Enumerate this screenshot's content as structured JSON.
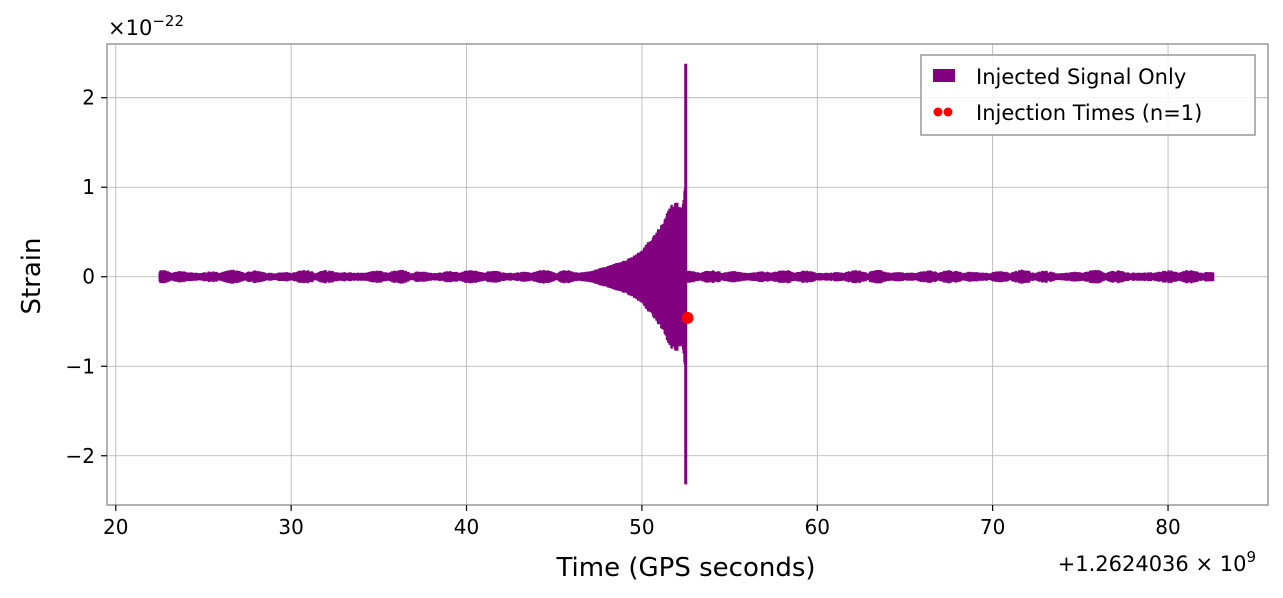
{
  "chart_data": {
    "type": "line",
    "title": "",
    "xlabel": "Time (GPS seconds)",
    "ylabel": "Strain",
    "y_scale_label": "×10^−22",
    "y_scale_base": "×10",
    "y_scale_exp": "−22",
    "x_offset_label": "+1.2624036×10^9",
    "x_offset_mant": "+1.2624036 × 10",
    "x_offset_exp": "9",
    "xlim": [
      19.5,
      85.7
    ],
    "ylim": [
      -2.55,
      2.6
    ],
    "x_ticks": [
      20,
      30,
      40,
      50,
      60,
      70,
      80
    ],
    "x_tick_labels": [
      "20",
      "30",
      "40",
      "50",
      "60",
      "70",
      "80"
    ],
    "y_ticks": [
      -2,
      -1,
      0,
      1,
      2
    ],
    "y_tick_labels": [
      "−2",
      "−1",
      "0",
      "1",
      "2"
    ],
    "grid": true,
    "legend_position": "top-right",
    "series": [
      {
        "name": "Injected Signal Only",
        "kind": "strain",
        "color": "#800080",
        "x_start": 22.5,
        "x_end": 82.6,
        "noise_envelope": 0.08,
        "chirp_peak_x": 52.5,
        "chirp_envelope_points": [
          [
            44.5,
            0.0
          ],
          [
            47.0,
            0.06
          ],
          [
            49.0,
            0.18
          ],
          [
            50.0,
            0.3
          ],
          [
            51.0,
            0.55
          ],
          [
            51.8,
            0.85
          ],
          [
            52.3,
            0.8
          ],
          [
            52.45,
            1.0
          ]
        ],
        "merger_max": 2.38,
        "merger_min": -2.32
      },
      {
        "name": "Injection Times (n=1)",
        "kind": "scatter",
        "color": "#ff0000",
        "points": [
          [
            52.6,
            -0.46
          ]
        ]
      }
    ]
  }
}
